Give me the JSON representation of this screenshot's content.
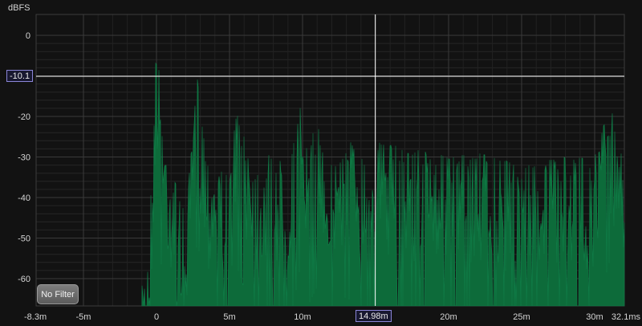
{
  "y_unit_label": "dBFS",
  "x_tick_labels": [
    "-8.3m",
    "-5m",
    "0",
    "5m",
    "10m",
    "15m",
    "20m",
    "25m",
    "30m",
    "32.1ms"
  ],
  "y_tick_labels": [
    "0",
    "-10",
    "-20",
    "-30",
    "-40",
    "-50",
    "-60"
  ],
  "cursor": {
    "x_value": "14.98m",
    "y_value": "-10.1"
  },
  "filter_button_label": "No Filter",
  "colors": {
    "trace": "#0d6b3a",
    "background": "#121212",
    "grid": "#3a3a3a",
    "cursor": "#ffffff",
    "readout_border": "#8a85d8"
  },
  "chart_data": {
    "type": "area",
    "xlabel": "",
    "ylabel": "dBFS",
    "x_unit": "ms",
    "xlim": [
      -8.3,
      32.1
    ],
    "ylim": [
      -67.5,
      4.5
    ],
    "x_ticks": [
      -8.3,
      -5,
      0,
      5,
      10,
      15,
      20,
      25,
      30,
      32.1
    ],
    "y_ticks": [
      0,
      -10,
      -20,
      -30,
      -40,
      -50,
      -60
    ],
    "grid": true,
    "cursor": {
      "x": 14.98,
      "y": -10.1
    },
    "envelope": {
      "x": [
        -1.0,
        -0.5,
        0.0,
        0.5,
        1.0,
        2.0,
        2.8,
        3.5,
        5.0,
        5.5,
        7.0,
        8.0,
        9.0,
        10.0,
        10.2,
        11.0,
        12.0,
        13.0,
        14.0,
        15.0,
        16.0,
        18.0,
        20.0,
        22.0,
        25.0,
        28.0,
        30.0,
        31.0,
        31.5,
        32.1
      ],
      "y": [
        -62,
        -50,
        0,
        -25,
        -32,
        -45,
        -10,
        -30,
        -35,
        -17,
        -33,
        -28,
        -34,
        -14,
        -28,
        -22,
        -32,
        -24,
        -30,
        -26,
        -27,
        -28,
        -30,
        -29,
        -32,
        -30,
        -30,
        -16,
        -22,
        -35
      ]
    }
  }
}
